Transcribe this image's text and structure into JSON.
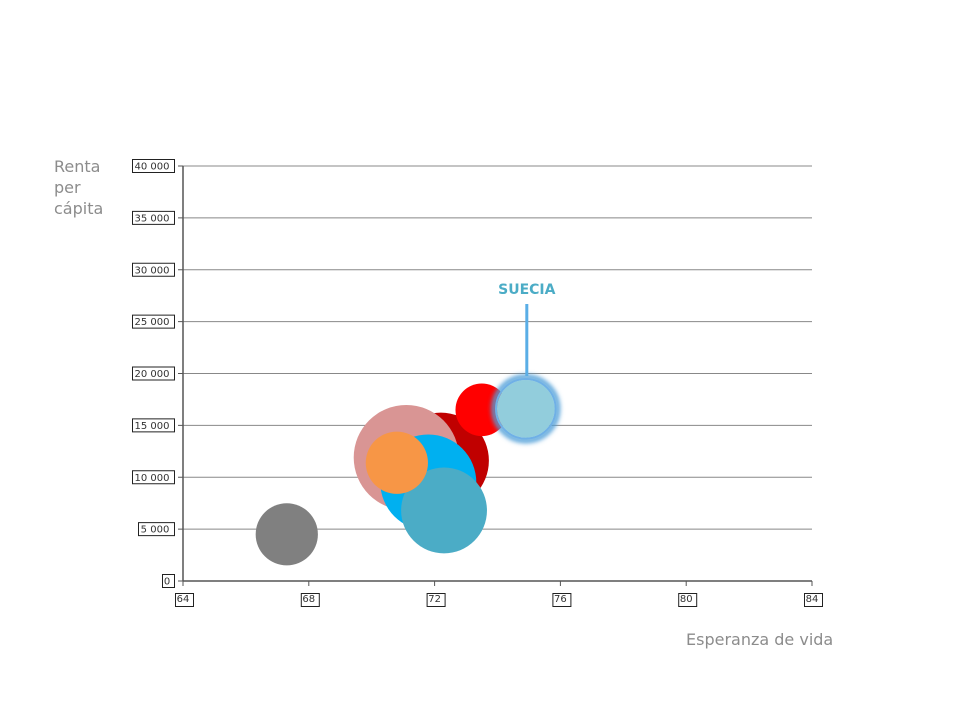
{
  "chart_data": {
    "type": "scatter",
    "subtype": "bubble",
    "xlabel": "Esperanza de vida",
    "ylabel": "Renta\nper\ncápita",
    "xlim": [
      64,
      84
    ],
    "ylim": [
      0,
      40000
    ],
    "x_ticks": [
      "64",
      "68",
      "72",
      "76",
      "80",
      "84"
    ],
    "y_ticks": [
      "0",
      "5 000",
      "10 000",
      "15 000",
      "20 000",
      "25 000",
      "30 000",
      "35 000",
      "40 000"
    ],
    "x_tick_values": [
      64,
      68,
      72,
      76,
      80,
      84
    ],
    "y_tick_values": [
      0,
      5000,
      10000,
      15000,
      20000,
      25000,
      30000,
      35000,
      40000
    ],
    "grid": "horizontal",
    "points": [
      {
        "x": 72.2,
        "y": 11600,
        "size": 1.0,
        "color": "#c00000"
      },
      {
        "x": 71.1,
        "y": 11900,
        "size": 1.2,
        "color": "#d99594"
      },
      {
        "x": 71.8,
        "y": 9500,
        "size": 1.0,
        "color": "#00b0f0"
      },
      {
        "x": 72.3,
        "y": 6800,
        "size": 0.8,
        "color": "#4bacc6"
      },
      {
        "x": 70.8,
        "y": 11400,
        "size": 0.42,
        "color": "#f79646"
      },
      {
        "x": 73.5,
        "y": 16500,
        "size": 0.3,
        "color": "#ff0000"
      },
      {
        "x": 67.3,
        "y": 4500,
        "size": 0.42,
        "color": "#808080"
      },
      {
        "x": 74.9,
        "y": 16600,
        "size": 0.36,
        "color": "#92cddc",
        "highlighted": true
      }
    ],
    "annotation": {
      "text": "SUECIA",
      "color": "#4bacc6",
      "target_x": 74.9,
      "target_y": 16600
    }
  }
}
